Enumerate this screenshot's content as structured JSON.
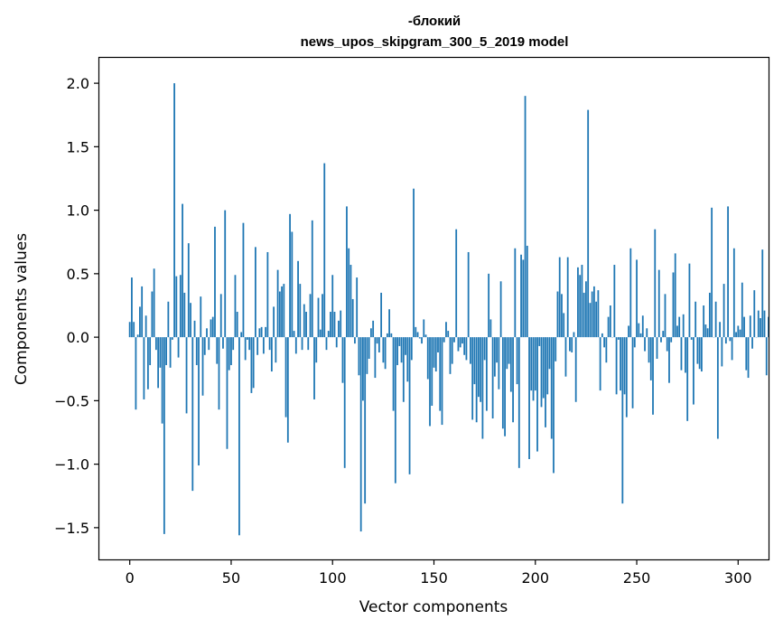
{
  "chart_data": {
    "type": "bar",
    "title_line1": "-блокий",
    "title_line2": "news_upos_skipgram_300_5_2019 model",
    "xlabel": "Vector components",
    "ylabel": "Components values",
    "xlim": [
      -15,
      315
    ],
    "ylim": [
      -1.75,
      2.2
    ],
    "xticks": [
      0,
      50,
      100,
      150,
      200,
      250,
      300
    ],
    "xtick_labels": [
      "0",
      "50",
      "100",
      "150",
      "200",
      "250",
      "300"
    ],
    "yticks": [
      -1.5,
      -1.0,
      -0.5,
      0.0,
      0.5,
      1.0,
      1.5,
      2.0
    ],
    "ytick_labels": [
      "−1.5",
      "−1.0",
      "−0.5",
      "0.0",
      "0.5",
      "1.0",
      "1.5",
      "2.0"
    ],
    "grid": false,
    "bar_color": "#1f77b4",
    "values": [
      0.12,
      0.47,
      0.12,
      -0.57,
      0.02,
      0.24,
      0.4,
      -0.49,
      0.17,
      -0.41,
      -0.22,
      0.36,
      0.54,
      -0.1,
      -0.4,
      -0.24,
      -0.68,
      -1.55,
      -0.22,
      0.28,
      -0.24,
      -0.02,
      2.0,
      0.48,
      -0.16,
      0.49,
      1.05,
      0.35,
      -0.6,
      0.74,
      0.27,
      -1.21,
      0.13,
      -0.22,
      -1.01,
      0.32,
      -0.46,
      -0.14,
      0.07,
      -0.1,
      0.14,
      0.16,
      0.87,
      -0.21,
      -0.57,
      0.34,
      -0.09,
      1.0,
      -0.88,
      -0.26,
      -0.22,
      -0.1,
      0.49,
      0.2,
      -1.56,
      0.04,
      0.9,
      -0.18,
      -0.02,
      -0.1,
      -0.44,
      -0.4,
      0.71,
      -0.14,
      0.07,
      0.08,
      -0.13,
      0.08,
      0.67,
      -0.1,
      -0.27,
      0.24,
      -0.2,
      0.53,
      0.36,
      0.4,
      0.42,
      -0.63,
      -0.83,
      0.97,
      0.83,
      0.05,
      -0.13,
      0.6,
      0.42,
      -0.1,
      0.26,
      0.2,
      -0.1,
      0.34,
      0.92,
      -0.49,
      -0.2,
      0.31,
      0.06,
      0.34,
      1.37,
      -0.1,
      0.05,
      0.2,
      0.49,
      0.2,
      -0.08,
      0.13,
      0.21,
      -0.36,
      -1.03,
      1.03,
      0.7,
      0.57,
      0.3,
      -0.05,
      0.47,
      -0.3,
      -1.53,
      -0.5,
      -1.31,
      -0.29,
      -0.17,
      0.07,
      0.13,
      -0.32,
      -0.05,
      -0.12,
      0.35,
      -0.2,
      -0.25,
      0.03,
      0.22,
      0.03,
      -0.58,
      -1.15,
      -0.22,
      -0.07,
      -0.2,
      -0.51,
      -0.14,
      -0.35,
      -1.08,
      -0.18,
      1.17,
      0.08,
      0.04,
      -0.01,
      -0.05,
      0.14,
      0.02,
      -0.33,
      -0.7,
      -0.54,
      -0.24,
      -0.27,
      -0.12,
      -0.58,
      -0.69,
      -0.04,
      0.12,
      0.05,
      -0.29,
      -0.21,
      -0.04,
      0.85,
      -0.11,
      -0.08,
      -0.05,
      -0.14,
      -0.18,
      0.67,
      -0.21,
      -0.65,
      -0.37,
      -0.67,
      -0.47,
      -0.51,
      -0.8,
      -0.18,
      -0.58,
      0.5,
      0.14,
      -0.64,
      -0.31,
      -0.2,
      -0.41,
      0.44,
      -0.72,
      -0.78,
      -0.25,
      -0.21,
      -0.43,
      -0.67,
      0.7,
      -0.37,
      -1.03,
      0.65,
      0.61,
      1.9,
      0.72,
      -0.96,
      -0.42,
      -0.5,
      -0.42,
      -0.9,
      -0.07,
      -0.55,
      -0.48,
      -0.71,
      -0.45,
      -0.25,
      -0.8,
      -1.07,
      -0.19,
      0.36,
      0.63,
      0.34,
      0.19,
      -0.31,
      0.63,
      -0.11,
      -0.12,
      0.04,
      -0.51,
      0.55,
      0.49,
      0.57,
      0.35,
      0.44,
      1.79,
      0.27,
      0.36,
      0.4,
      0.28,
      0.37,
      -0.42,
      0.03,
      -0.08,
      -0.2,
      0.16,
      0.25,
      0.0,
      0.57,
      -0.45,
      -0.02,
      -0.42,
      -1.31,
      -0.45,
      -0.63,
      0.09,
      0.7,
      -0.56,
      -0.08,
      0.61,
      0.11,
      0.03,
      0.17,
      -0.11,
      0.07,
      -0.2,
      -0.34,
      -0.61,
      0.85,
      -0.17,
      0.53,
      -0.04,
      0.05,
      0.34,
      -0.11,
      -0.36,
      -0.04,
      0.51,
      0.66,
      0.09,
      0.16,
      -0.26,
      0.18,
      -0.28,
      -0.66,
      0.58,
      -0.02,
      -0.53,
      0.28,
      -0.21,
      -0.25,
      -0.27,
      0.25,
      0.1,
      0.07,
      0.35,
      1.02,
      0.0,
      0.28,
      -0.8,
      0.12,
      -0.23,
      0.42,
      -0.05,
      1.03,
      -0.03,
      -0.18,
      0.7,
      0.04,
      0.09,
      0.06,
      0.43,
      0.16,
      -0.26,
      -0.32,
      0.17,
      -0.09,
      0.37,
      0.0,
      0.21,
      0.15,
      0.69,
      0.21,
      -0.3,
      0.16
    ]
  }
}
